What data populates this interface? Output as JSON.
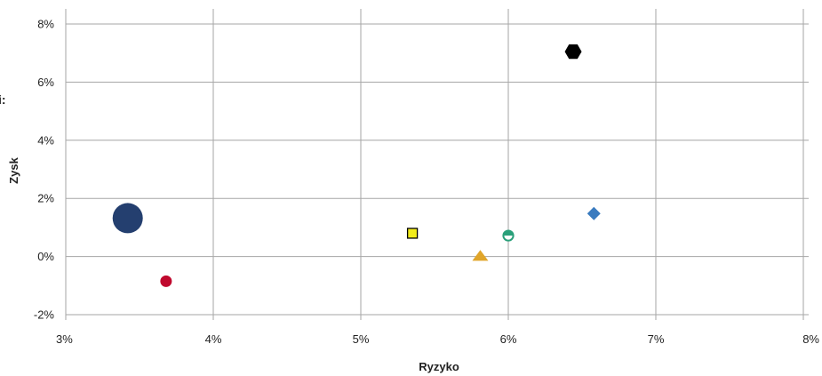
{
  "chart_data": {
    "type": "scatter",
    "xlabel": "Ryzyko",
    "ylabel": "Zysk",
    "xlim": [
      3,
      8
    ],
    "ylim": [
      -2,
      8
    ],
    "x_ticks": [
      "3%",
      "4%",
      "5%",
      "6%",
      "7%",
      "8%"
    ],
    "y_ticks": [
      "-2%",
      "0%",
      "2%",
      "4%",
      "6%",
      "8%"
    ],
    "grid": true,
    "clipped_edge_text": "i:",
    "points": [
      {
        "x": 3.42,
        "y": 1.32,
        "shape": "circle-large",
        "color": "#243f6f"
      },
      {
        "x": 3.68,
        "y": -0.85,
        "shape": "circle",
        "color": "#c0092e"
      },
      {
        "x": 5.35,
        "y": 0.8,
        "shape": "square",
        "color": "#f2ec1c"
      },
      {
        "x": 5.81,
        "y": -0.05,
        "shape": "triangle",
        "color": "#e0a52a"
      },
      {
        "x": 6.0,
        "y": 0.72,
        "shape": "half-circle",
        "color": "#2aa07a"
      },
      {
        "x": 6.44,
        "y": 7.05,
        "shape": "hexagon",
        "color": "#000000"
      },
      {
        "x": 6.58,
        "y": 1.48,
        "shape": "diamond",
        "color": "#3a7bbf"
      }
    ]
  }
}
